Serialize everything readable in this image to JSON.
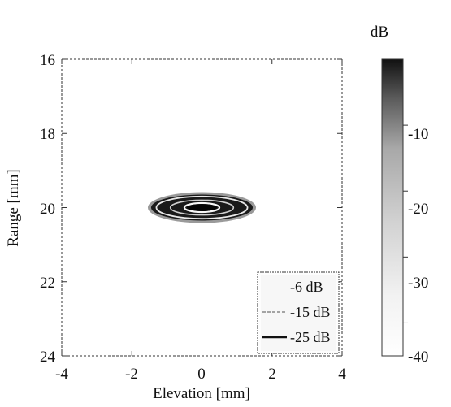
{
  "chart_data": {
    "type": "heatmap",
    "title": "",
    "xlabel": "Elevation [mm]",
    "ylabel": "Range [mm]",
    "xlim": [
      -4,
      4
    ],
    "ylim": [
      24,
      16
    ],
    "y_axis_reversed": true,
    "xticks": [
      "-4",
      "-2",
      "0",
      "2",
      "4"
    ],
    "yticks": [
      "16",
      "18",
      "20",
      "22",
      "24"
    ],
    "colorbar": {
      "unit_label": "dB",
      "range": [
        -45,
        0
      ],
      "ticks": [
        "-10",
        "-20",
        "-30",
        "-40"
      ],
      "colormap": "gray, white (low) to black (high)"
    },
    "focal_spot": {
      "center": [
        0,
        20
      ],
      "half_width_mm": 1.45,
      "half_height_mm": 0.35
    },
    "contours": [
      {
        "level_db": -6,
        "half_width_mm": 0.5,
        "half_height_mm": 0.12
      },
      {
        "level_db": -15,
        "half_width_mm": 0.9,
        "half_height_mm": 0.2
      },
      {
        "level_db": -25,
        "half_width_mm": 1.3,
        "half_height_mm": 0.3
      }
    ],
    "legend": {
      "position": "bottom-right",
      "entries": [
        "-6 dB",
        "-15 dB",
        "-25 dB"
      ]
    }
  }
}
